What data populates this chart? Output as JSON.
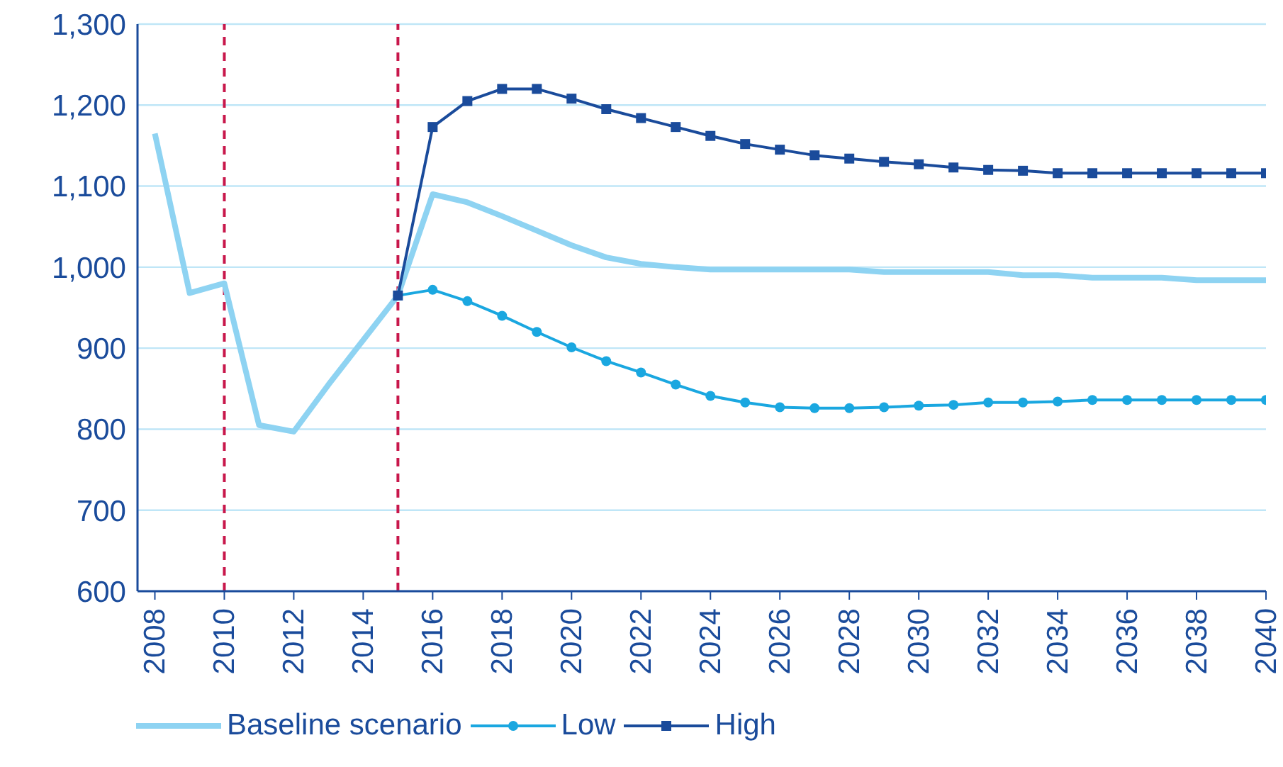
{
  "chart_data": {
    "type": "line",
    "x": [
      2008,
      2009,
      2010,
      2011,
      2012,
      2013,
      2014,
      2015,
      2016,
      2017,
      2018,
      2019,
      2020,
      2021,
      2022,
      2023,
      2024,
      2025,
      2026,
      2027,
      2028,
      2029,
      2030,
      2031,
      2032,
      2033,
      2034,
      2035,
      2036,
      2037,
      2038,
      2039,
      2040
    ],
    "series": [
      {
        "name": "Baseline scenario",
        "color": "#8ed3f2",
        "marker": "none",
        "values": [
          1165,
          968,
          980,
          805,
          797,
          855,
          910,
          965,
          1090,
          1080,
          1063,
          1045,
          1027,
          1012,
          1004,
          1000,
          997,
          997,
          997,
          997,
          997,
          994,
          994,
          994,
          994,
          990,
          990,
          987,
          987,
          987,
          984,
          984,
          984
        ]
      },
      {
        "name": "Low",
        "color": "#1aa7e0",
        "marker": "circle",
        "values": [
          null,
          null,
          null,
          null,
          null,
          null,
          null,
          965,
          972,
          958,
          940,
          920,
          901,
          884,
          870,
          855,
          841,
          833,
          827,
          826,
          826,
          827,
          829,
          830,
          833,
          833,
          834,
          836,
          836,
          836,
          836,
          836,
          836
        ]
      },
      {
        "name": "High",
        "color": "#1a4b9b",
        "marker": "square",
        "values": [
          null,
          null,
          null,
          null,
          null,
          null,
          null,
          965,
          1173,
          1205,
          1220,
          1220,
          1208,
          1195,
          1184,
          1173,
          1162,
          1152,
          1145,
          1138,
          1134,
          1130,
          1127,
          1123,
          1120,
          1119,
          1116,
          1116,
          1116,
          1116,
          1116,
          1116,
          1116
        ]
      }
    ],
    "xlim": [
      2007.5,
      2040
    ],
    "xticks": [
      2008,
      2010,
      2012,
      2014,
      2016,
      2018,
      2020,
      2022,
      2024,
      2026,
      2028,
      2030,
      2032,
      2034,
      2036,
      2038,
      2040
    ],
    "ylim": [
      600,
      1300
    ],
    "yticks": [
      {
        "value": 600,
        "label": "600"
      },
      {
        "value": 700,
        "label": "700"
      },
      {
        "value": 800,
        "label": "800"
      },
      {
        "value": 900,
        "label": "900"
      },
      {
        "value": 1000,
        "label": "1,000"
      },
      {
        "value": 1100,
        "label": "1,100"
      },
      {
        "value": 1200,
        "label": "1,200"
      },
      {
        "value": 1300,
        "label": "1,300"
      }
    ],
    "grid": "y",
    "legend": "bottom left",
    "ref_lines": [
      {
        "axis": "x",
        "value": 2010,
        "color": "#c8174b",
        "line_style": "dashed"
      },
      {
        "axis": "x",
        "value": 2015,
        "color": "#c8174b",
        "line_style": "dashed"
      }
    ]
  }
}
